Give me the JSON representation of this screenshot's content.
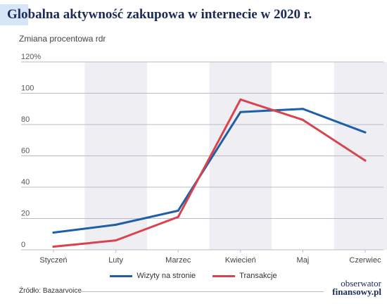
{
  "title": "Globalna aktywność zakupowa w internecie w 2020 r.",
  "source": "Źródło: Bazaarvoice",
  "brand": {
    "line1": "obserwator",
    "line2": "finansowy.pl"
  },
  "colors": {
    "series1": "#1f5ea8",
    "series2": "#d9434d",
    "band": "#efeff3",
    "grid": "#b9bcc7",
    "title": "#1b2a57"
  },
  "chart_data": {
    "type": "line",
    "title": "Globalna aktywność zakupowa w internecie w 2020 r.",
    "ylabel": "Zmiana procentowa rdr",
    "categories": [
      "Styczeń",
      "Luty",
      "Marzec",
      "Kwiecień",
      "Maj",
      "Czerwiec"
    ],
    "ylim": [
      0,
      120
    ],
    "yticks": [
      0,
      20,
      40,
      60,
      80,
      100
    ],
    "ytick_labels": [
      "0",
      "20",
      "40",
      "60",
      "80",
      "100"
    ],
    "ymax_label": "120%",
    "shaded_bands": [
      "Luty",
      "Kwiecień",
      "Czerwiec"
    ],
    "series": [
      {
        "name": "Wizyty na stronie",
        "values": [
          11,
          16,
          25,
          88,
          90,
          75
        ]
      },
      {
        "name": "Transakcje",
        "values": [
          2,
          6,
          21,
          96,
          83,
          57
        ]
      }
    ],
    "grid": true,
    "legend": "bottom"
  }
}
